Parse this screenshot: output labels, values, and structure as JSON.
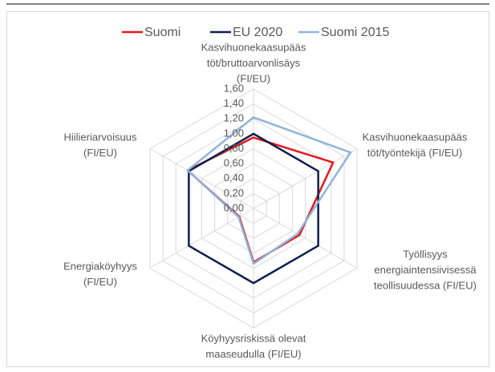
{
  "chart_data": {
    "type": "radar",
    "categories": [
      [
        "Kasvihuonekaasupääs",
        "töt/bruttoarvonlisäys",
        "(FI/EU)"
      ],
      [
        "Kasvihuonekaasupääs",
        "töt/työntekijä (FI/EU)"
      ],
      [
        "Työllisyys",
        "energiaintensiivisessä",
        "teollisuudessa (FI/EU)"
      ],
      [
        "Köyhyysriskissä olevat",
        "maaseudulla (FI/EU)"
      ],
      [
        "Energiaköyhyys",
        "(FI/EU)"
      ],
      [
        "Hiilieriarvoisuus",
        "(FI/EU)"
      ]
    ],
    "series": [
      {
        "name": "Suomi",
        "color": "#e8161b",
        "values": [
          0.95,
          1.23,
          0.71,
          0.72,
          0.22,
          1.02
        ]
      },
      {
        "name": "EU 2020",
        "color": "#0f1f4f",
        "values": [
          1,
          1,
          1,
          1,
          1,
          1
        ]
      },
      {
        "name": "Suomi 2015",
        "color": "#8fb4dc",
        "values": [
          1.22,
          1.5,
          0.68,
          0.74,
          0.23,
          1.02
        ]
      }
    ],
    "ylim": [
      0,
      1.6
    ],
    "yticks": [
      {
        "value": 0,
        "label": "0,00"
      },
      {
        "value": 0.2,
        "label": "0,20"
      },
      {
        "value": 0.4,
        "label": "0,40"
      },
      {
        "value": 0.6,
        "label": "0,60"
      },
      {
        "value": 0.8,
        "label": "0,80"
      },
      {
        "value": 1,
        "label": "1,00"
      },
      {
        "value": 1.2,
        "label": "1,20"
      },
      {
        "value": 1.4,
        "label": "1,40"
      },
      {
        "value": 1.6,
        "label": "1,60"
      }
    ],
    "grid": true,
    "legend": "top"
  }
}
